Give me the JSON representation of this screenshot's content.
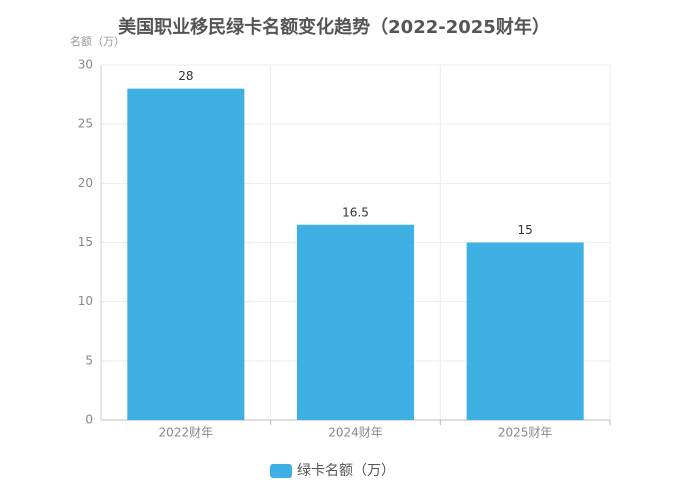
{
  "chart_data": {
    "type": "bar",
    "title": "美国职业移民绿卡名额变化趋势（2022-2025财年）",
    "y_label": "名额（万）",
    "categories": [
      "2022财年",
      "2024财年",
      "2025财年"
    ],
    "series": [
      {
        "name": "绿卡名额（万）",
        "color": "#3fb0e3",
        "values": [
          28,
          16.5,
          15
        ]
      }
    ],
    "ylim": [
      0,
      30
    ],
    "yticks": [
      0,
      5,
      10,
      15,
      20,
      25,
      30
    ],
    "grid": true,
    "legend": "bottom"
  }
}
